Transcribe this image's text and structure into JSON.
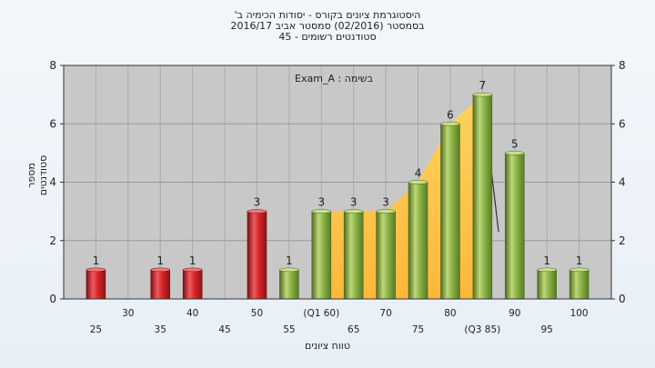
{
  "header": {
    "line1": "היסטוגרמת ציונים בקורס - יסודות הכימיה ב'",
    "line2": "בסמסטר  (02/2016)  סמסטר אביב 2016/17",
    "line3": "סטודנטים רשומים - 45"
  },
  "colors": {
    "plot_bg": "#c8c8c8",
    "red_bar": "#d7262b",
    "green_bar": "#8db347",
    "area": "#ffc843",
    "frame": "#333333"
  },
  "chart_data": {
    "type": "bar",
    "ylabel": "מספר סטודנטים",
    "xlabel": "טווח ציונים",
    "annotation": "בשימה : Exam_A",
    "ylim": [
      0,
      8
    ],
    "yticks": [
      0,
      2,
      4,
      6,
      8
    ],
    "xlim": [
      20,
      105
    ],
    "xticks": [
      {
        "x": 25,
        "label": "25",
        "row": 1
      },
      {
        "x": 30,
        "label": "30",
        "row": 0
      },
      {
        "x": 35,
        "label": "35",
        "row": 1
      },
      {
        "x": 40,
        "label": "40",
        "row": 0
      },
      {
        "x": 45,
        "label": "45",
        "row": 1
      },
      {
        "x": 50,
        "label": "50",
        "row": 0
      },
      {
        "x": 55,
        "label": "55",
        "row": 1
      },
      {
        "x": 60,
        "label": "(Q1 60)",
        "row": 0
      },
      {
        "x": 65,
        "label": "65",
        "row": 1
      },
      {
        "x": 70,
        "label": "70",
        "row": 0
      },
      {
        "x": 75,
        "label": "75",
        "row": 1
      },
      {
        "x": 80,
        "label": "80",
        "row": 0
      },
      {
        "x": 85,
        "label": "(Q3 85)",
        "row": 1
      },
      {
        "x": 90,
        "label": "90",
        "row": 0
      },
      {
        "x": 95,
        "label": "95",
        "row": 1
      },
      {
        "x": 100,
        "label": "100",
        "row": 0
      }
    ],
    "bars": [
      {
        "x": 25,
        "value": 1,
        "color": "red"
      },
      {
        "x": 35,
        "value": 1,
        "color": "red"
      },
      {
        "x": 40,
        "value": 1,
        "color": "red"
      },
      {
        "x": 50,
        "value": 3,
        "color": "red"
      },
      {
        "x": 55,
        "value": 1,
        "color": "green"
      },
      {
        "x": 60,
        "value": 3,
        "color": "green"
      },
      {
        "x": 65,
        "value": 3,
        "color": "green"
      },
      {
        "x": 70,
        "value": 3,
        "color": "green"
      },
      {
        "x": 75,
        "value": 4,
        "color": "green"
      },
      {
        "x": 80,
        "value": 6,
        "color": "green"
      },
      {
        "x": 85,
        "value": 7,
        "color": "green"
      },
      {
        "x": 90,
        "value": 5,
        "color": "green"
      },
      {
        "x": 95,
        "value": 1,
        "color": "green"
      },
      {
        "x": 100,
        "value": 1,
        "color": "green"
      }
    ],
    "interquartile_area": {
      "x": [
        60,
        65,
        70,
        75,
        80,
        85
      ],
      "y": [
        3,
        3,
        3,
        4,
        6,
        7
      ]
    },
    "trend_line": {
      "x": [
        85,
        87.5
      ],
      "y": [
        7,
        2.3
      ]
    },
    "grid": true
  }
}
